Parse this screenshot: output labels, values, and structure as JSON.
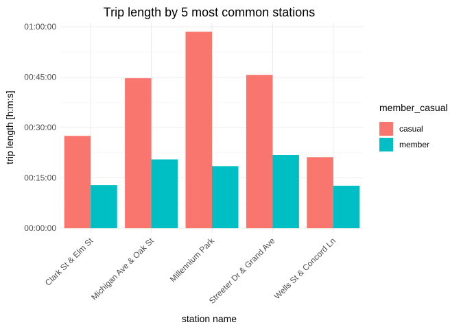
{
  "chart_data": {
    "type": "bar",
    "title": "Trip length by 5 most common stations",
    "xlabel": "station name",
    "ylabel": "trip length [h:m:s]",
    "categories": [
      "Clark St & Elm St",
      "Michigan Ave & Oak St",
      "Millennium Park",
      "Streeter Dr & Grand Ave",
      "Wells St & Concord Ln"
    ],
    "series": [
      {
        "name": "casual",
        "color": "#F8766D",
        "values": [
          "00:27:30",
          "00:44:40",
          "00:58:30",
          "00:45:40",
          "00:21:10"
        ]
      },
      {
        "name": "member",
        "color": "#00BFC4",
        "values": [
          "00:12:50",
          "00:20:30",
          "00:18:30",
          "00:21:50",
          "00:12:40"
        ]
      }
    ],
    "yticks": [
      "00:00:00",
      "00:15:00",
      "00:30:00",
      "00:45:00",
      "01:00:00"
    ],
    "ylim": [
      "00:00:00",
      "01:00:00"
    ],
    "legend": {
      "title": "member_casual",
      "position": "right"
    },
    "grid": true
  }
}
